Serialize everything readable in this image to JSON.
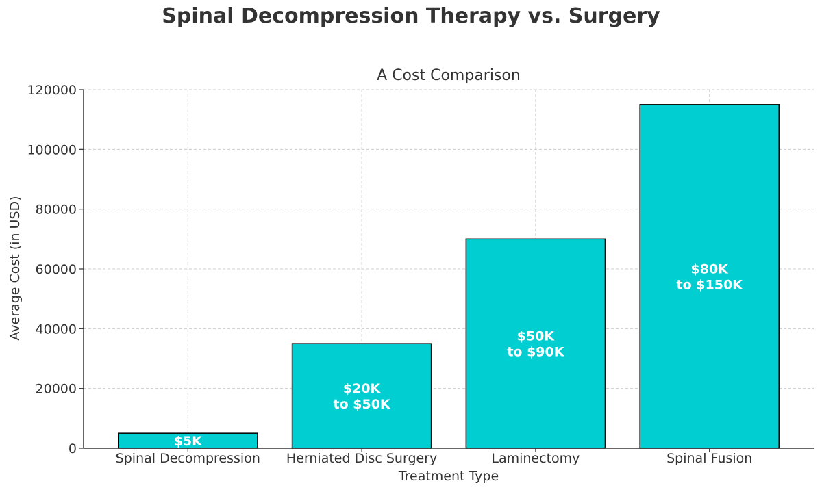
{
  "suptitle": "Spinal Decompression Therapy vs. Surgery",
  "chart_data": {
    "type": "bar",
    "title": "A Cost Comparison",
    "xlabel": "Treatment Type",
    "ylabel": "Average Cost (in USD)",
    "categories": [
      "Spinal Decompression",
      "Herniated Disc Surgery",
      "Laminectomy",
      "Spinal Fusion"
    ],
    "values": [
      5000,
      35000,
      70000,
      115000
    ],
    "bar_labels": [
      "$5K",
      "$20K\nto $50K",
      "$50K\nto $90K",
      "$80K\nto $150K"
    ],
    "ylim": [
      0,
      120000
    ],
    "yticks": [
      0,
      20000,
      40000,
      60000,
      80000,
      100000,
      120000
    ],
    "grid": true,
    "bar_color": "#00CED1",
    "edge_color": "#000000",
    "label_color": "#ffffff"
  }
}
